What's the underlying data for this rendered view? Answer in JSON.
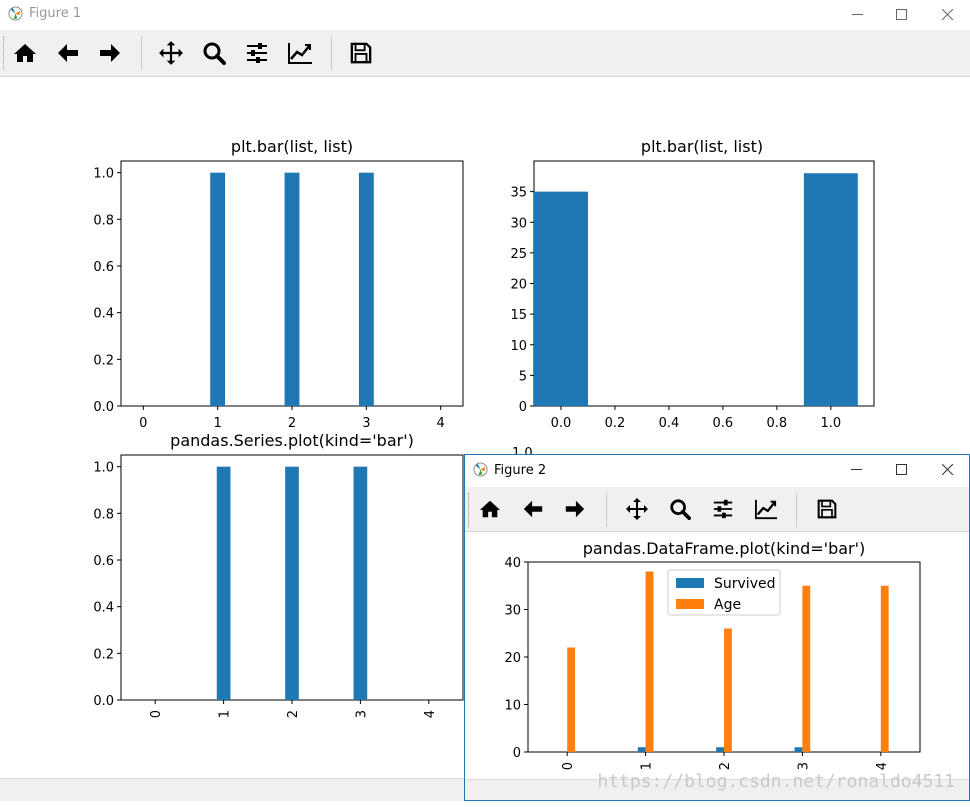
{
  "window1": {
    "title": "Figure 1",
    "toolbar_icons": [
      "home-icon",
      "back-arrow-icon",
      "forward-arrow-icon",
      "pan-icon",
      "zoom-icon",
      "configure-subplots-icon",
      "edit-axis-icon",
      "save-icon"
    ]
  },
  "window2": {
    "title": "Figure 2",
    "toolbar_icons": [
      "home-icon",
      "back-arrow-icon",
      "forward-arrow-icon",
      "pan-icon",
      "zoom-icon",
      "configure-subplots-icon",
      "edit-axis-icon",
      "save-icon"
    ]
  },
  "colors": {
    "blue": "#1f77b4",
    "orange": "#ff7f0e"
  },
  "chart_data": [
    {
      "type": "bar",
      "title": "plt.bar(list, list)",
      "x": [
        0,
        1,
        2,
        3,
        4
      ],
      "values": [
        0,
        1,
        1,
        1,
        0
      ],
      "xlim": [
        -0.3,
        4.3
      ],
      "ylim": [
        0,
        1.05
      ],
      "xticks": [
        "0",
        "1",
        "2",
        "3",
        "4"
      ],
      "yticks": [
        "0.0",
        "0.2",
        "0.4",
        "0.6",
        "0.8",
        "1.0"
      ]
    },
    {
      "type": "bar",
      "title": "plt.bar(list, list)",
      "x": [
        0,
        1
      ],
      "values": [
        35,
        38
      ],
      "xlim": [
        -0.1,
        1.16
      ],
      "ylim": [
        0,
        40
      ],
      "xticks": [
        "0.0",
        "0.2",
        "0.4",
        "0.6",
        "0.8",
        "1.0"
      ],
      "yticks": [
        "0",
        "5",
        "10",
        "15",
        "20",
        "25",
        "30",
        "35"
      ]
    },
    {
      "type": "bar",
      "title": "pandas.Series.plot(kind='bar')",
      "categories": [
        "0",
        "1",
        "2",
        "3",
        "4"
      ],
      "values": [
        0,
        1,
        1,
        1,
        0
      ],
      "ylim": [
        0,
        1.05
      ],
      "yticks": [
        "0.0",
        "0.2",
        "0.4",
        "0.6",
        "0.8",
        "1.0"
      ]
    },
    {
      "type": "bar",
      "title": "pandas.DataFrame.plot(kind='bar')",
      "categories": [
        "0",
        "1",
        "2",
        "3",
        "4"
      ],
      "series": [
        {
          "name": "Survived",
          "values": [
            0,
            1,
            1,
            1,
            0
          ]
        },
        {
          "name": "Age",
          "values": [
            22,
            38,
            26,
            35,
            35
          ]
        }
      ],
      "ylim": [
        0,
        40
      ],
      "yticks": [
        "0",
        "10",
        "20",
        "30",
        "40"
      ],
      "legend": "upper-center"
    }
  ],
  "partial_tick_label": "1.0",
  "watermark": "https://blog.csdn.net/ronaldo4511"
}
